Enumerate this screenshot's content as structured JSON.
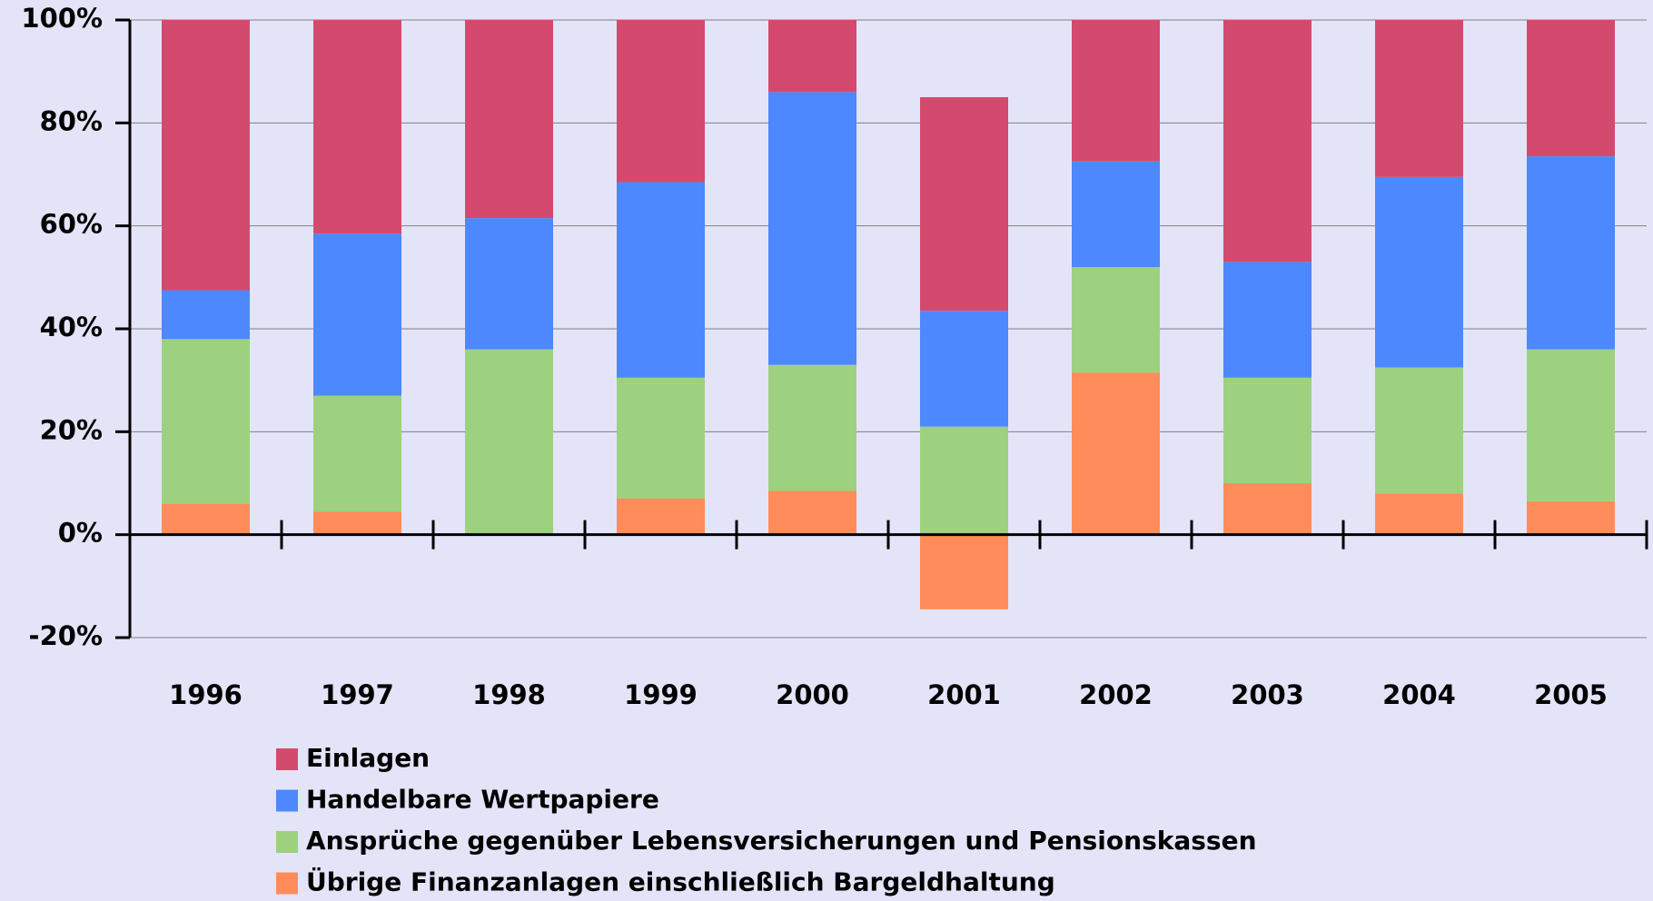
{
  "chart_data": {
    "type": "stacked_bar",
    "categories": [
      "1996",
      "1997",
      "1998",
      "1999",
      "2000",
      "2001",
      "2002",
      "2003",
      "2004",
      "2005"
    ],
    "series": [
      {
        "name": "Einlagen",
        "color": "#d44a6e",
        "values": [
          52.5,
          41.5,
          38.5,
          31.5,
          14,
          41.5,
          27.5,
          47,
          30.5,
          26.5
        ]
      },
      {
        "name": "Handelbare Wertpapiere",
        "color": "#4d88ff",
        "values": [
          9.5,
          31.5,
          25.5,
          38,
          53,
          22.5,
          20.5,
          22.5,
          37,
          37.5
        ]
      },
      {
        "name": "Ansprüche gegenüber Lebensversicherungen und Pensionskassen",
        "color": "#9dd17f",
        "values": [
          32,
          22.5,
          36,
          23.5,
          24.5,
          21,
          20.5,
          20.5,
          24.5,
          29.5
        ]
      },
      {
        "name": "Übrige Finanzanlagen einschließlich Bargeldhaltung",
        "color": "#ff8c5a",
        "values": [
          6,
          4.5,
          0,
          7,
          8.5,
          -14.5,
          31.5,
          10,
          8,
          6.5
        ]
      }
    ],
    "ylim": [
      -20,
      100
    ],
    "yticks": [
      {
        "value": -20,
        "label": "-20%"
      },
      {
        "value": 0,
        "label": "0%"
      },
      {
        "value": 20,
        "label": "20%"
      },
      {
        "value": 40,
        "label": "40%"
      },
      {
        "value": 60,
        "label": "60%"
      },
      {
        "value": 80,
        "label": "80%"
      },
      {
        "value": 100,
        "label": "100%"
      }
    ],
    "grid": true,
    "legend": "bottom"
  }
}
